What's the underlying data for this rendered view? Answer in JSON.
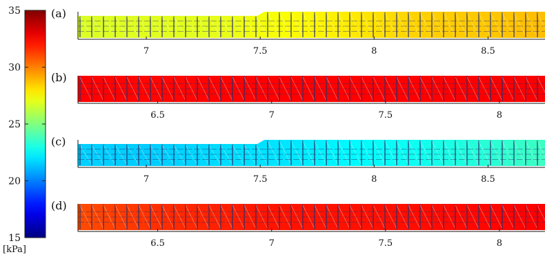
{
  "chart_data": [
    {
      "type": "heatmap",
      "panel_label": "(a)",
      "xlim": [
        6.7,
        8.75
      ],
      "xticks": [
        7,
        7.5,
        8,
        8.5
      ],
      "xtick_labels": [
        "7",
        "7.5",
        "8",
        "8.5"
      ],
      "field_x": [
        6.7,
        7.0,
        7.3,
        7.6,
        7.9,
        8.2,
        8.5,
        8.75
      ],
      "field_values": [
        26.8,
        26.9,
        27.0,
        27.4,
        27.9,
        28.4,
        28.6,
        28.8
      ]
    },
    {
      "type": "heatmap",
      "panel_label": "(b)",
      "xlim": [
        6.15,
        8.2
      ],
      "xticks": [
        6.5,
        7,
        7.5,
        8
      ],
      "xtick_labels": [
        "6.5",
        "7",
        "7.5",
        "8"
      ],
      "field_x": [
        6.15,
        6.5,
        7.0,
        7.5,
        8.0,
        8.2
      ],
      "field_values": [
        32.5,
        32.4,
        32.5,
        32.5,
        32.6,
        32.6
      ]
    },
    {
      "type": "heatmap",
      "panel_label": "(c)",
      "xlim": [
        6.7,
        8.75
      ],
      "xticks": [
        7,
        7.5,
        8,
        8.5
      ],
      "xtick_labels": [
        "7",
        "7.5",
        "8",
        "8.5"
      ],
      "field_x": [
        6.7,
        7.0,
        7.3,
        7.6,
        7.9,
        8.2,
        8.5,
        8.75
      ],
      "field_values": [
        21.6,
        21.5,
        21.8,
        22.0,
        22.4,
        22.8,
        23.3,
        23.7
      ]
    },
    {
      "type": "heatmap",
      "panel_label": "(d)",
      "xlim": [
        6.15,
        8.2
      ],
      "xticks": [
        6.5,
        7,
        7.5,
        8
      ],
      "xtick_labels": [
        "6.5",
        "7",
        "7.5",
        "8"
      ],
      "field_x": [
        6.15,
        6.5,
        7.0,
        7.5,
        8.0,
        8.2
      ],
      "field_values": [
        31.0,
        31.6,
        32.1,
        32.2,
        32.4,
        32.5
      ]
    }
  ],
  "colorbar": {
    "colormap": "jet",
    "range": [
      15,
      35
    ],
    "ticks": [
      15,
      20,
      25,
      30,
      35
    ],
    "tick_labels": [
      "15",
      "20",
      "25",
      "30",
      "35"
    ],
    "unit_label": "[kPa]"
  }
}
